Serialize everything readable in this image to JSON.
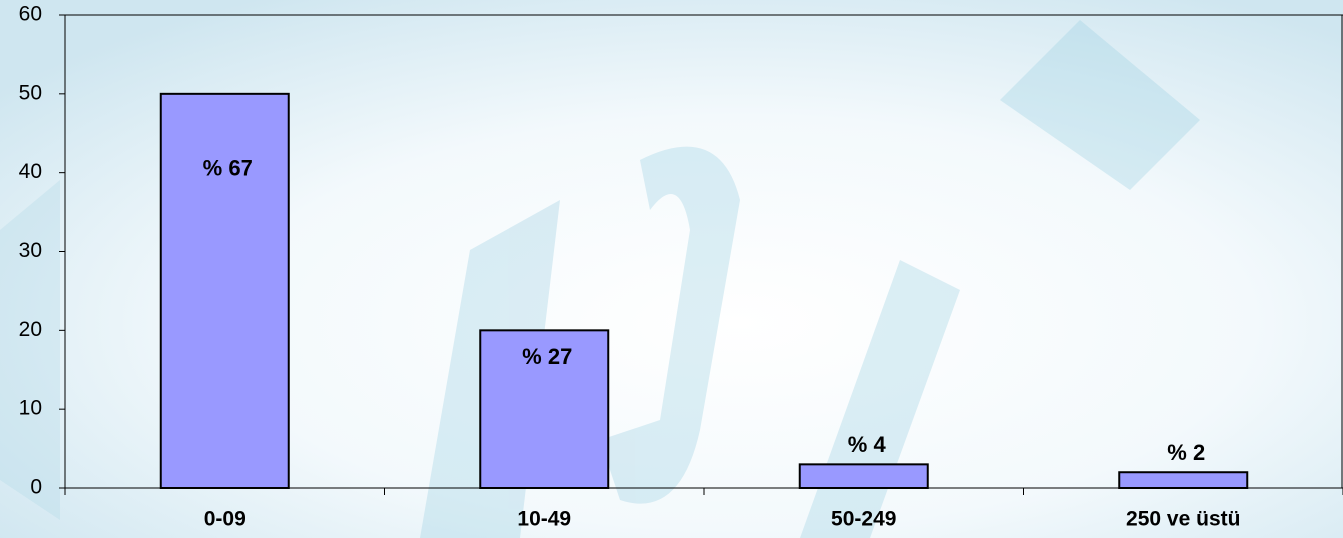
{
  "chart_data": {
    "type": "bar",
    "categories": [
      "0-09",
      "10-49",
      "50-249",
      "250 ve üstü"
    ],
    "values": [
      50,
      20,
      3,
      2
    ],
    "annotations": [
      "% 67",
      "% 27",
      "% 4",
      "% 2"
    ],
    "color": "#9999ff",
    "ylim": [
      0,
      60
    ],
    "yticks": [
      0,
      10,
      20,
      30,
      40,
      50,
      60
    ]
  }
}
